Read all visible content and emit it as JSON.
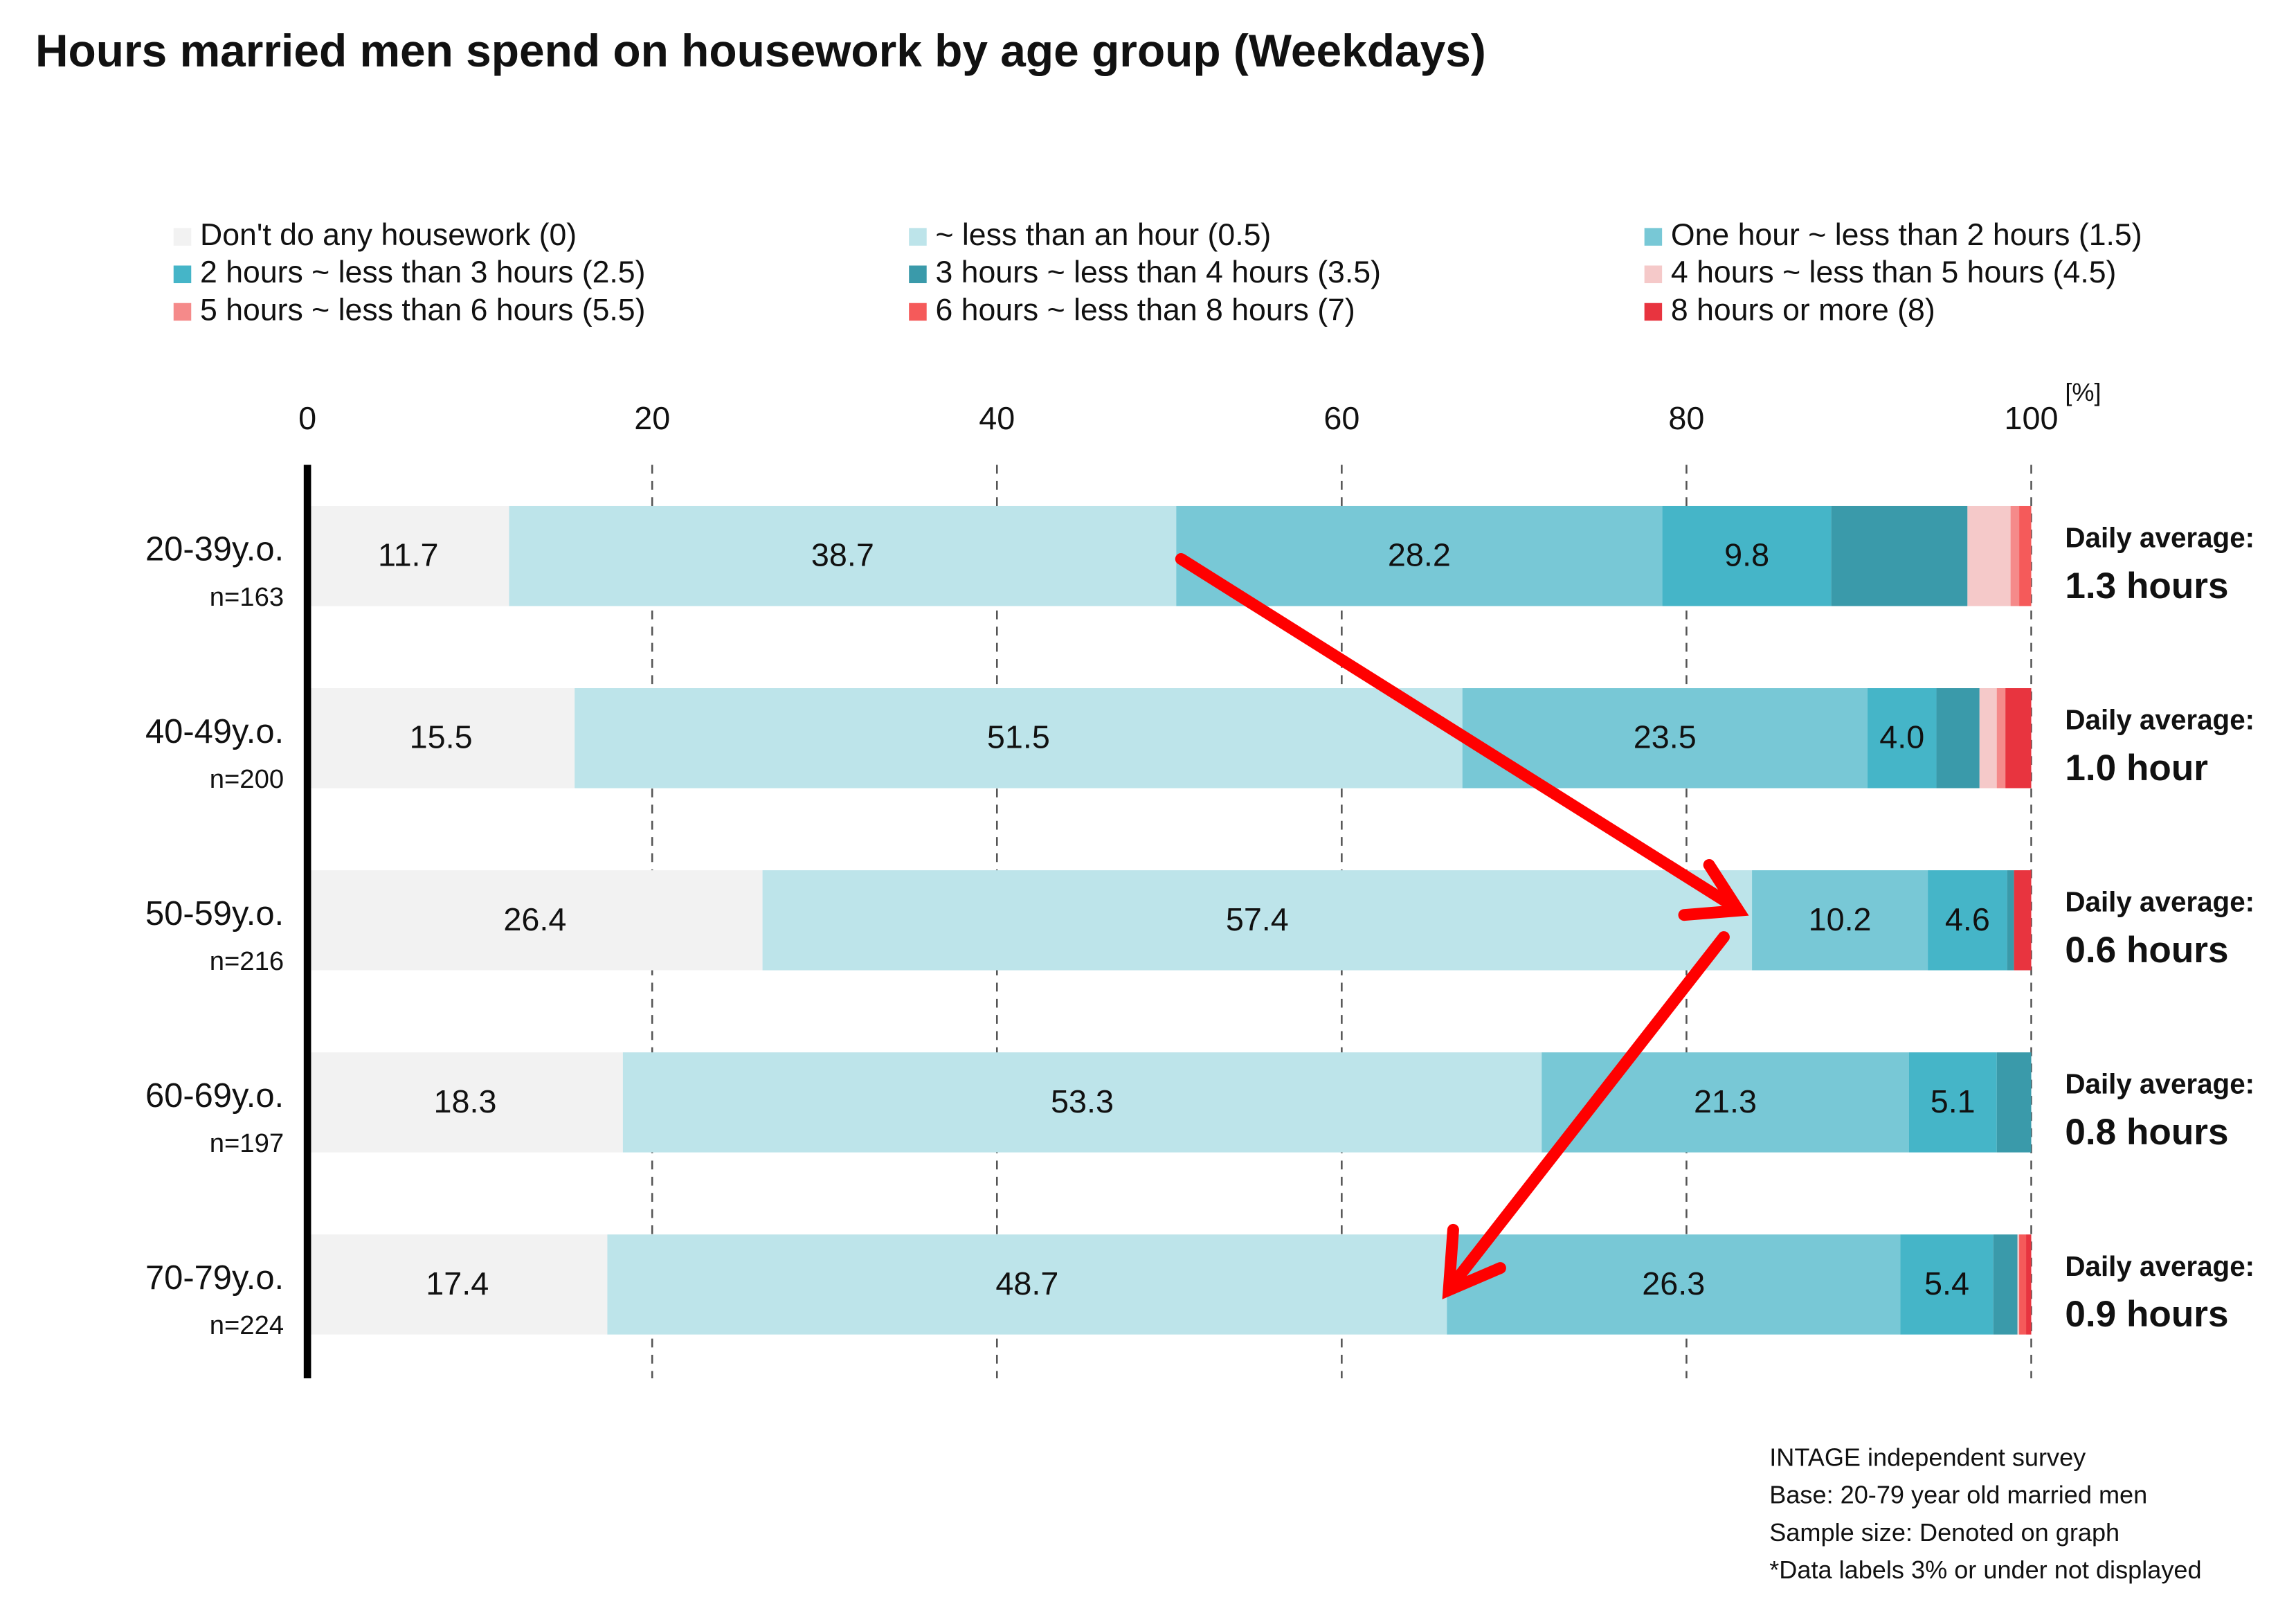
{
  "chart_data": {
    "type": "stacked-barh",
    "title": "Hours married men spend on housework by age group (Weekdays)",
    "categories": [
      "20-39y.o.",
      "40-49y.o.",
      "50-59y.o.",
      "60-69y.o.",
      "70-79y.o."
    ],
    "sample_sizes": [
      "n=163",
      "n=200",
      "n=216",
      "n=197",
      "n=224"
    ],
    "xlim": [
      0,
      100
    ],
    "xticks": [
      0,
      20,
      40,
      60,
      80,
      100
    ],
    "x_unit": "[%]",
    "grid": true,
    "series": [
      {
        "name": "Don't do any housework (0)",
        "color": "#f2f2f2",
        "values": [
          11.7,
          15.5,
          26.4,
          18.3,
          17.4
        ],
        "value_labels": [
          "11.7",
          "15.5",
          "26.4",
          "18.3",
          "17.4"
        ]
      },
      {
        "name": "~ less than an hour (0.5)",
        "color": "#bde4ea",
        "values": [
          38.7,
          51.5,
          57.4,
          53.3,
          48.7
        ],
        "value_labels": [
          "38.7",
          "51.5",
          "57.4",
          "53.3",
          "48.7"
        ]
      },
      {
        "name": "One hour ~ less than 2 hours (1.5)",
        "color": "#78c8d6",
        "values": [
          28.2,
          23.5,
          10.2,
          21.3,
          26.3
        ],
        "value_labels": [
          "28.2",
          "23.5",
          "10.2",
          "21.3",
          "26.3"
        ]
      },
      {
        "name": "2 hours ~ less than 3 hours (2.5)",
        "color": "#45b5c8",
        "values": [
          9.8,
          4.0,
          4.6,
          5.1,
          5.4
        ],
        "value_labels": [
          "9.8",
          "4.0",
          "4.6",
          "5.1",
          "5.4"
        ]
      },
      {
        "name": "3 hours ~ less than 4 hours (3.5)",
        "color": "#3a9aaa",
        "values": [
          7.9,
          2.5,
          0.4,
          2.0,
          1.4
        ]
      },
      {
        "name": "4 hours ~ less than 5 hours (4.5)",
        "color": "#f5c9c9",
        "values": [
          2.5,
          1.0,
          0,
          0,
          0.1
        ]
      },
      {
        "name": "5 hours ~ less than 6 hours (5.5)",
        "color": "#f58a8a",
        "values": [
          0.5,
          0.5,
          0,
          0,
          0
        ]
      },
      {
        "name": "6 hours ~ less than 8 hours (7)",
        "color": "#f55a5a",
        "values": [
          0.7,
          0,
          0,
          0,
          0.4
        ]
      },
      {
        "name": "8 hours or more (8)",
        "color": "#e8343f",
        "values": [
          0,
          1.5,
          1.0,
          0,
          0.3
        ]
      }
    ],
    "daily_average": {
      "label": "Daily average:",
      "values": [
        "1.3 hours",
        "1.0 hour",
        "0.6 hours",
        "0.8 hours",
        "0.9 hours"
      ]
    },
    "notes": [
      "INTAGE independent survey",
      "Base: 20-79 year old married men",
      "Sample size: Denoted on graph",
      "*Data labels 3% or under not displayed"
    ]
  }
}
